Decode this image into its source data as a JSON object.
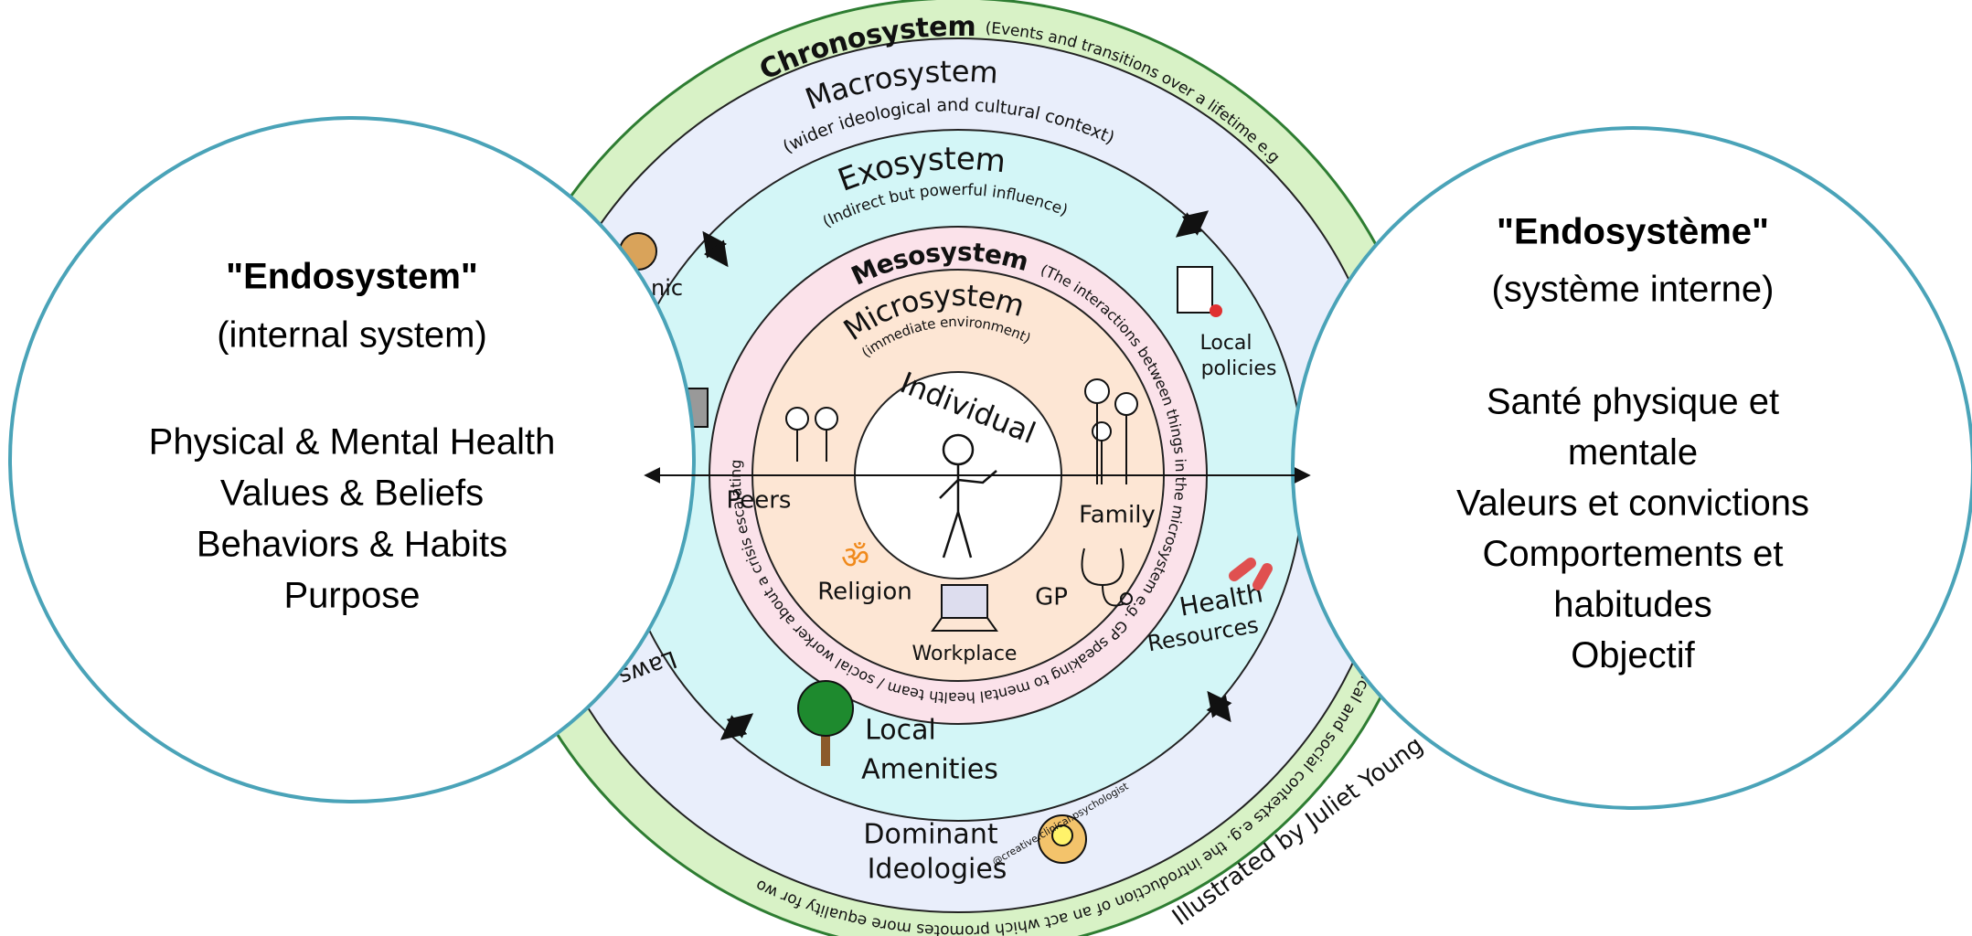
{
  "left_panel": {
    "title": "\"Endosystem\"",
    "subtitle": "(internal system)",
    "items": [
      "Physical & Mental Health",
      "Values & Beliefs",
      "Behaviors & Habits",
      "Purpose"
    ]
  },
  "right_panel": {
    "title": "\"Endosystème\"",
    "subtitle": "(système interne)",
    "items": [
      "Santé physique et",
      "mentale",
      "Valeurs et convictions",
      "Comportements et",
      "habitudes",
      "Objectif"
    ]
  },
  "diagram": {
    "chronosystem": {
      "label": "Chronosystem",
      "description": "(Events and transitions over a lifetime e.g",
      "description_end": "political and social contexts e.g. the introduction of an act which promotes more equality for wo"
    },
    "macrosystem": {
      "label": "Macrosystem",
      "description": "(wider ideological and cultural context)",
      "items": [
        "Dominant",
        "Ideologies"
      ],
      "partial_labels": [
        "nic",
        "Laws"
      ]
    },
    "exosystem": {
      "label": "Exosystem",
      "description": "(Indirect but powerful influence)",
      "items": [
        "Local",
        "policies",
        "Health",
        "Resources",
        "Local",
        "Amenities"
      ]
    },
    "mesosystem": {
      "label": "Mesosystem",
      "description": "(The interactions between things in the microsystem e.g. GP speaking to mental health team / social worker about a crisis escalating"
    },
    "microsystem": {
      "label": "Microsystem",
      "description": "(immediate environment)",
      "items": [
        "Peers",
        "Family",
        "Religion",
        "GP",
        "Workplace"
      ]
    },
    "individual": "Individual",
    "credit": "Illustrated by Juliet Young",
    "handle": "@creative.clinical.psychologist"
  }
}
